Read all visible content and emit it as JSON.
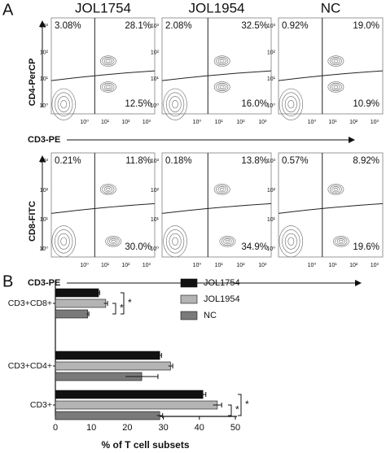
{
  "panel_a": {
    "label": "A",
    "column_titles": [
      "JOL1754",
      "JOL1954",
      "NC"
    ],
    "x_ticks": [
      "10⁰",
      "10¹",
      "10²",
      "10³"
    ],
    "y_ticks": [
      "10³",
      "10²",
      "10¹",
      "10⁰"
    ],
    "rows": [
      {
        "y_label": "CD4-PerCP",
        "x_label": "CD3-PE",
        "plots": [
          [
            "3.08%",
            "28.1%",
            "12.5%"
          ],
          [
            "2.08%",
            "32.5%",
            "16.0%"
          ],
          [
            "0.92%",
            "19.0%",
            "10.9%"
          ]
        ]
      },
      {
        "y_label": "CD8-FITC",
        "x_label": "CD3-PE",
        "plots": [
          [
            "0.21%",
            "11.8%",
            "30.0%"
          ],
          [
            "0.18%",
            "13.8%",
            "34.9%"
          ],
          [
            "0.57%",
            "8.92%",
            "19.6%"
          ]
        ]
      }
    ]
  },
  "chart_data": {
    "type": "hbar",
    "panel_label": "B",
    "categories": [
      "CD3+CD8+",
      "CD3+CD4+",
      "CD3+"
    ],
    "series": [
      {
        "name": "JOL1754",
        "color": "#111111",
        "values": [
          12,
          29,
          41
        ],
        "errors": [
          0.3,
          0.5,
          0.8
        ]
      },
      {
        "name": "JOL1954",
        "color": "#b4b4b4",
        "values": [
          14,
          32,
          45
        ],
        "errors": [
          0.5,
          0.6,
          1.2
        ]
      },
      {
        "name": "NC",
        "color": "#7a7a7a",
        "values": [
          9,
          24,
          29
        ],
        "errors": [
          0.3,
          4.5,
          0.8
        ]
      }
    ],
    "xlim": [
      0,
      50
    ],
    "xticks": [
      0,
      10,
      20,
      30,
      40,
      50
    ],
    "x_label": "% of T cell subsets",
    "annotations": [
      "*",
      "*",
      "*",
      "*"
    ]
  }
}
